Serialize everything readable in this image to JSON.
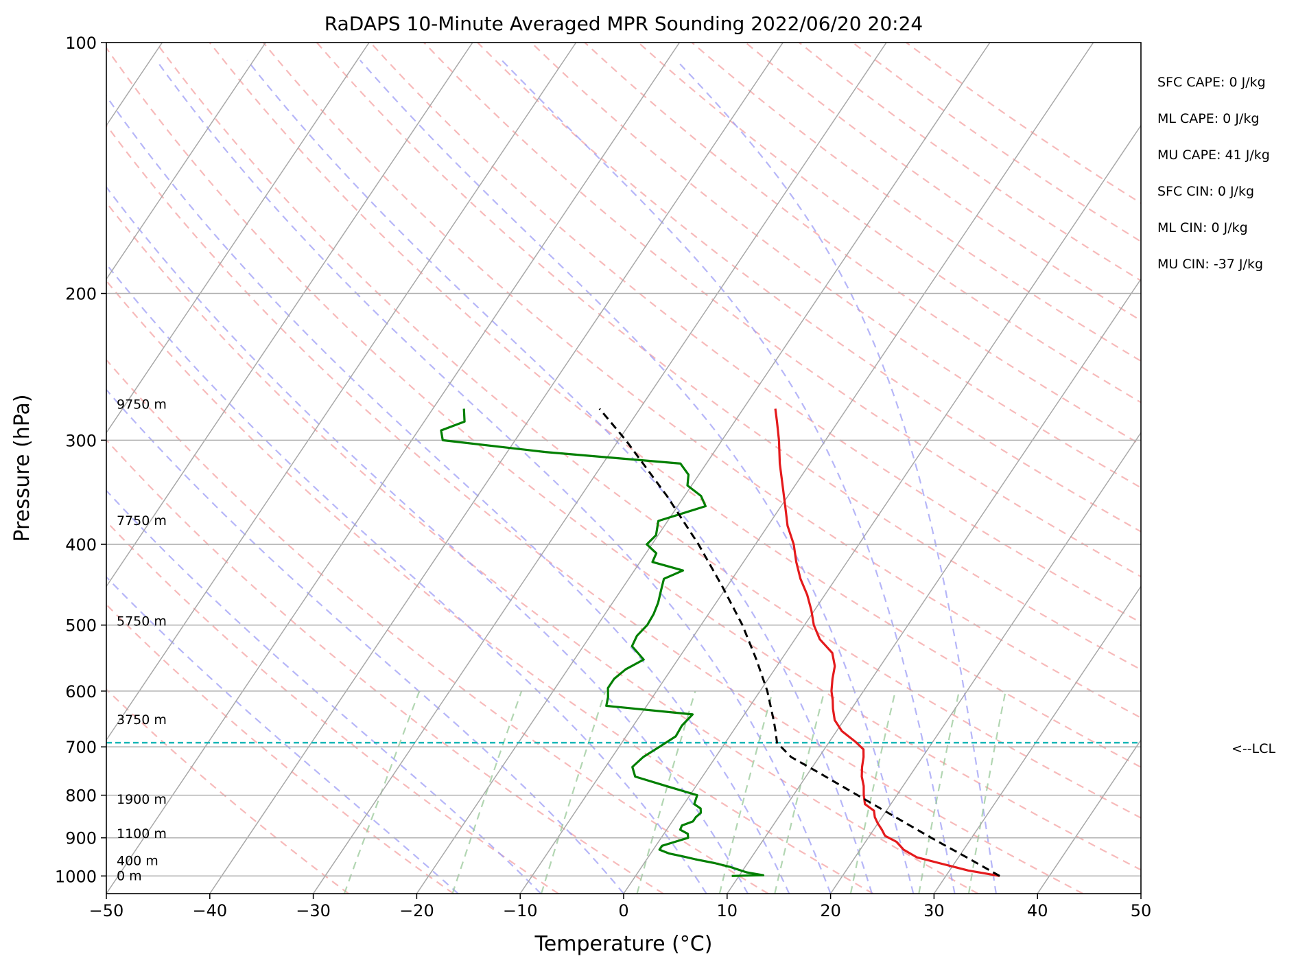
{
  "chart_data": {
    "type": "line",
    "title": "RaDAPS 10-Minute Averaged MPR Sounding 2022/06/20 20:24",
    "xlabel": "Temperature (°C)",
    "ylabel": "Pressure (hPa)",
    "xlim": [
      -50,
      50
    ],
    "ylim": [
      1050,
      100
    ],
    "y_scale": "log",
    "skew": "skew-T",
    "grid": true,
    "x_ticks": [
      "−50",
      "−40",
      "−30",
      "−20",
      "−10",
      "0",
      "10",
      "20",
      "30",
      "40",
      "50"
    ],
    "y_ticks": [
      "100",
      "200",
      "300",
      "400",
      "500",
      "600",
      "700",
      "800",
      "900",
      "1000"
    ],
    "height_labels": [
      {
        "p": 1000,
        "text": "0 m"
      },
      {
        "p": 960,
        "text": "400 m"
      },
      {
        "p": 890,
        "text": "1100 m"
      },
      {
        "p": 810,
        "text": "1900 m"
      },
      {
        "p": 650,
        "text": "3750 m"
      },
      {
        "p": 495,
        "text": "5750 m"
      },
      {
        "p": 375,
        "text": "7750 m"
      },
      {
        "p": 272,
        "text": "9750 m"
      }
    ],
    "indices": [
      "SFC CAPE: 0 J/kg",
      "ML CAPE: 0 J/kg",
      "MU CAPE: 41 J/kg",
      "SFC CIN: 0 J/kg",
      "ML CIN: 0 J/kg",
      "MU CIN: -37 J/kg"
    ],
    "lcl": {
      "p": 692,
      "label": "<--LCL"
    },
    "series": [
      {
        "key": "temperature",
        "color": "#e41a1c",
        "points": [
          [
            1000,
            35.2
          ],
          [
            985,
            31.8
          ],
          [
            965,
            28.5
          ],
          [
            950,
            26.0
          ],
          [
            930,
            24.2
          ],
          [
            910,
            23.0
          ],
          [
            895,
            21.5
          ],
          [
            880,
            20.8
          ],
          [
            865,
            20.0
          ],
          [
            850,
            19.3
          ],
          [
            835,
            18.8
          ],
          [
            820,
            17.5
          ],
          [
            800,
            16.8
          ],
          [
            780,
            16.2
          ],
          [
            760,
            15.4
          ],
          [
            740,
            14.8
          ],
          [
            720,
            14.3
          ],
          [
            705,
            13.8
          ],
          [
            690,
            12.5
          ],
          [
            670,
            10.5
          ],
          [
            650,
            9.1
          ],
          [
            630,
            8.2
          ],
          [
            615,
            7.6
          ],
          [
            600,
            6.9
          ],
          [
            580,
            6.2
          ],
          [
            560,
            5.6
          ],
          [
            540,
            4.5
          ],
          [
            520,
            2.4
          ],
          [
            500,
            0.9
          ],
          [
            480,
            -0.3
          ],
          [
            460,
            -1.7
          ],
          [
            440,
            -3.4
          ],
          [
            420,
            -4.9
          ],
          [
            400,
            -6.3
          ],
          [
            380,
            -8.1
          ],
          [
            360,
            -9.6
          ],
          [
            340,
            -11.2
          ],
          [
            320,
            -12.9
          ],
          [
            300,
            -14.5
          ],
          [
            285,
            -15.9
          ],
          [
            275,
            -16.9
          ]
        ]
      },
      {
        "key": "dewpoint",
        "color": "#007f00",
        "points": [
          [
            1000,
            9.3
          ],
          [
            998,
            12.3
          ],
          [
            990,
            10.5
          ],
          [
            975,
            8.5
          ],
          [
            965,
            6.8
          ],
          [
            955,
            4.7
          ],
          [
            948,
            3.4
          ],
          [
            940,
            1.8
          ],
          [
            930,
            0.6
          ],
          [
            920,
            0.6
          ],
          [
            910,
            1.6
          ],
          [
            900,
            2.6
          ],
          [
            890,
            2.3
          ],
          [
            880,
            1.3
          ],
          [
            870,
            1.2
          ],
          [
            860,
            2.0
          ],
          [
            850,
            2.0
          ],
          [
            840,
            2.2
          ],
          [
            830,
            1.9
          ],
          [
            820,
            1.0
          ],
          [
            800,
            0.7
          ],
          [
            780,
            -2.9
          ],
          [
            760,
            -6.5
          ],
          [
            740,
            -7.4
          ],
          [
            720,
            -7.0
          ],
          [
            700,
            -6.1
          ],
          [
            680,
            -5.2
          ],
          [
            660,
            -5.3
          ],
          [
            640,
            -5.0
          ],
          [
            625,
            -13.9
          ],
          [
            610,
            -14.3
          ],
          [
            595,
            -14.9
          ],
          [
            580,
            -14.9
          ],
          [
            565,
            -14.4
          ],
          [
            550,
            -13.3
          ],
          [
            530,
            -15.3
          ],
          [
            515,
            -15.5
          ],
          [
            500,
            -15.2
          ],
          [
            485,
            -15.3
          ],
          [
            470,
            -15.6
          ],
          [
            455,
            -16.1
          ],
          [
            440,
            -16.6
          ],
          [
            430,
            -15.3
          ],
          [
            420,
            -18.8
          ],
          [
            410,
            -19.0
          ],
          [
            400,
            -20.5
          ],
          [
            390,
            -20.2
          ],
          [
            375,
            -20.9
          ],
          [
            360,
            -17.3
          ],
          [
            350,
            -18.4
          ],
          [
            340,
            -20.4
          ],
          [
            330,
            -21.0
          ],
          [
            320,
            -22.5
          ],
          [
            310,
            -36.3
          ],
          [
            300,
            -47.0
          ],
          [
            292,
            -47.8
          ],
          [
            285,
            -46.1
          ],
          [
            275,
            -47.0
          ]
        ]
      },
      {
        "key": "parcel",
        "color": "#000000",
        "dashed": true,
        "points": [
          [
            1000,
            35.2
          ],
          [
            950,
            30.8
          ],
          [
            900,
            26.1
          ],
          [
            850,
            21.3
          ],
          [
            800,
            16.2
          ],
          [
            750,
            10.8
          ],
          [
            720,
            7.3
          ],
          [
            692,
            5.0
          ],
          [
            670,
            4.1
          ],
          [
            650,
            3.2
          ],
          [
            600,
            0.7
          ],
          [
            550,
            -2.4
          ],
          [
            500,
            -6.0
          ],
          [
            450,
            -10.4
          ],
          [
            400,
            -15.5
          ],
          [
            350,
            -21.7
          ],
          [
            300,
            -29.3
          ],
          [
            275,
            -33.9
          ]
        ]
      }
    ]
  }
}
